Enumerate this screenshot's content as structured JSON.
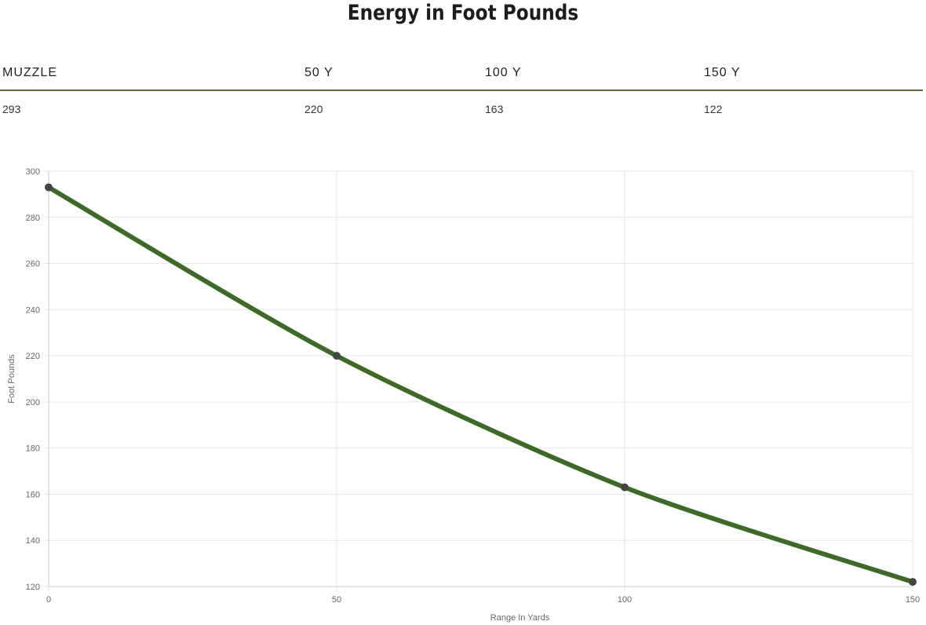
{
  "title": "Energy in Foot Pounds",
  "table": {
    "headers": [
      "MUZZLE",
      "50 Y",
      "100 Y",
      "150 Y"
    ],
    "values": [
      "293",
      "220",
      "163",
      "122"
    ]
  },
  "colors": {
    "line": "#3d6b27",
    "point": "#444444",
    "grid": "#e6e6e6",
    "rule": "#6b6442"
  },
  "chart_data": {
    "type": "line",
    "x": [
      0,
      50,
      100,
      150
    ],
    "series": [
      {
        "values": [
          293,
          220,
          163,
          122
        ]
      }
    ],
    "xlabel": "Range In Yards",
    "ylabel": "Foot Pounds",
    "xlim": [
      0,
      150
    ],
    "ylim": [
      120,
      300
    ],
    "xticks": [
      0,
      50,
      100,
      150
    ],
    "yticks": [
      120,
      140,
      160,
      180,
      200,
      220,
      240,
      260,
      280,
      300
    ],
    "grid": true
  }
}
